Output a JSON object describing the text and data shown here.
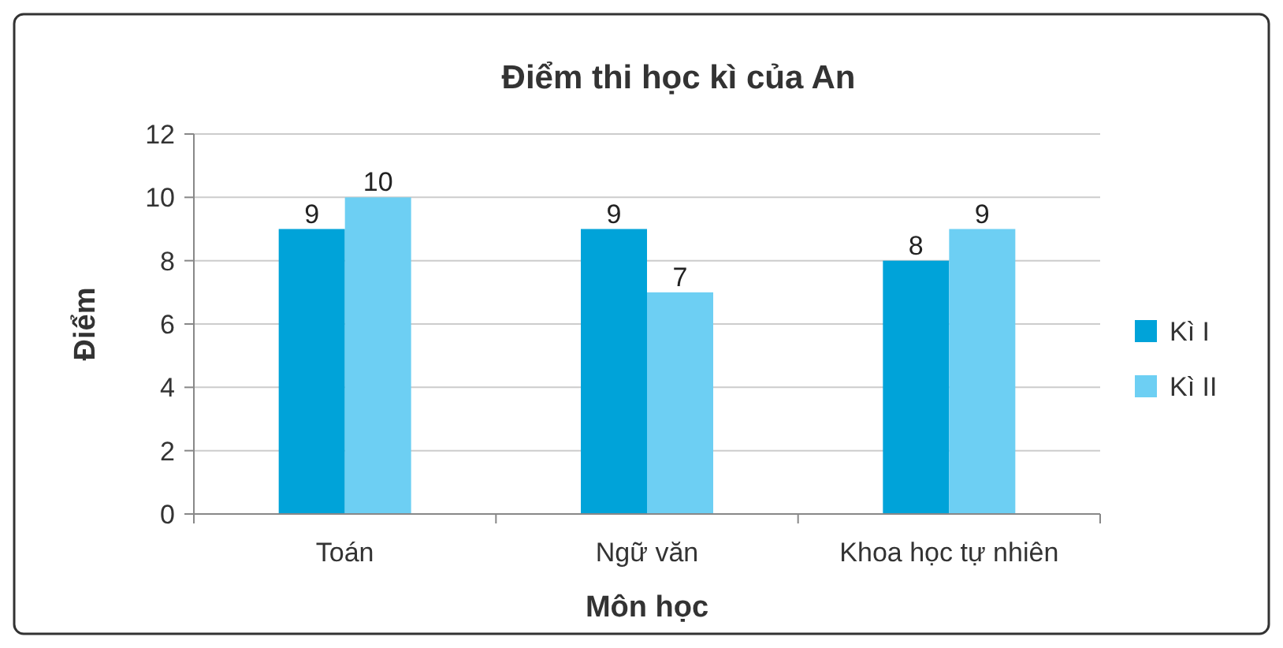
{
  "chart_data": {
    "type": "bar",
    "title": "Điểm thi học kì của An",
    "xlabel": "Môn học",
    "ylabel": "Điểm",
    "categories": [
      "Toán",
      "Ngữ văn",
      "Khoa học tự nhiên"
    ],
    "series": [
      {
        "name": "Kì I",
        "color": "#00a3d9",
        "values": [
          9,
          9,
          8
        ]
      },
      {
        "name": "Kì II",
        "color": "#6dcff3",
        "values": [
          10,
          7,
          9
        ]
      }
    ],
    "ylim": [
      0,
      12
    ],
    "yticks": [
      0,
      2,
      4,
      6,
      8,
      10,
      12
    ],
    "grid": "y",
    "legend": "right",
    "data_labels": true
  }
}
